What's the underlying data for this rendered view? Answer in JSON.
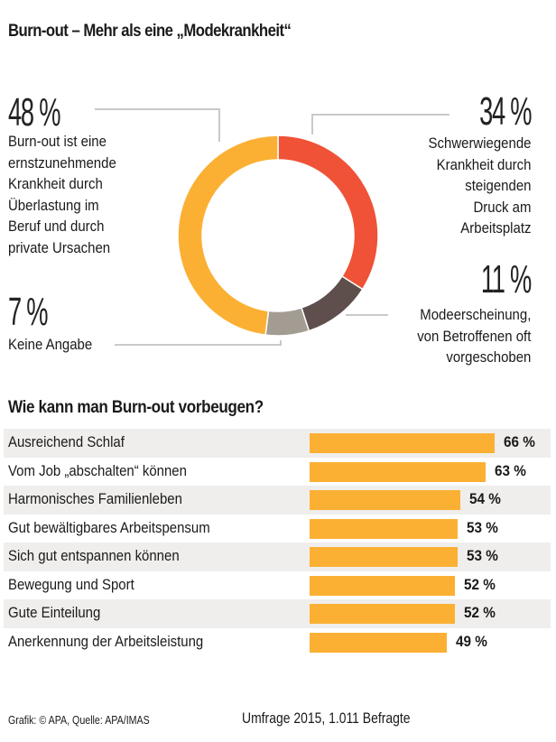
{
  "title": "Burn-out – Mehr als eine „Modekrankheit“",
  "chart_data": [
    {
      "type": "pie",
      "variant": "donut",
      "title": "Burn-out – Mehr als eine „Modekrankheit“",
      "slices": [
        {
          "label": "Schwerwiegende Krankheit durch steigenden Druck am Arbeitsplatz",
          "value": 34,
          "value_label": "34 %",
          "color": "#ef5236",
          "desc_lines": [
            "Schwerwiegende",
            "Krankheit durch",
            "steigenden",
            "Druck am",
            "Arbeitsplatz"
          ]
        },
        {
          "label": "Modeerscheinung, von Betroffenen oft vorgeschoben",
          "value": 11,
          "value_label": "11 %",
          "color": "#5e4f4d",
          "desc_lines": [
            "Modeerscheinung,",
            "von Betroffenen oft",
            "vorgeschoben"
          ]
        },
        {
          "label": "Keine Angabe",
          "value": 7,
          "value_label": "7 %",
          "color": "#a39c92",
          "desc_lines": [
            "Keine Angabe"
          ]
        },
        {
          "label": "Burn-out ist eine ernstzunehmende Krankheit durch Überlastung im Beruf und durch private Ursachen",
          "value": 48,
          "value_label": "48 %",
          "color": "#fbb034",
          "desc_lines": [
            "Burn-out ist eine",
            "ernstzunehmende",
            "Krankheit durch",
            "Überlastung im",
            "Beruf und durch",
            "private Ursachen"
          ]
        }
      ],
      "unit": "%"
    },
    {
      "type": "bar",
      "orientation": "horizontal",
      "title": "Wie kann man Burn-out vorbeugen?",
      "categories": [
        "Ausreichend Schlaf",
        "Vom Job „abschalten“ können",
        "Harmonisches Familienleben",
        "Gut bewältigbares Arbeitspensum",
        "Sich gut entspannen können",
        "Bewegung und Sport",
        "Gute Einteilung",
        "Anerkennung der Arbeitsleistung"
      ],
      "values": [
        66,
        63,
        54,
        53,
        53,
        52,
        52,
        49
      ],
      "value_labels": [
        "66 %",
        "63 %",
        "54 %",
        "53 %",
        "53 %",
        "52 %",
        "52 %",
        "49 %"
      ],
      "bar_color": "#fbb034",
      "unit": "%",
      "xlim": [
        0,
        100
      ]
    }
  ],
  "footer": {
    "source": "Grafik: © APA, Quelle: APA/IMAS",
    "survey": "Umfrage 2015, 1.011 Befragte"
  }
}
